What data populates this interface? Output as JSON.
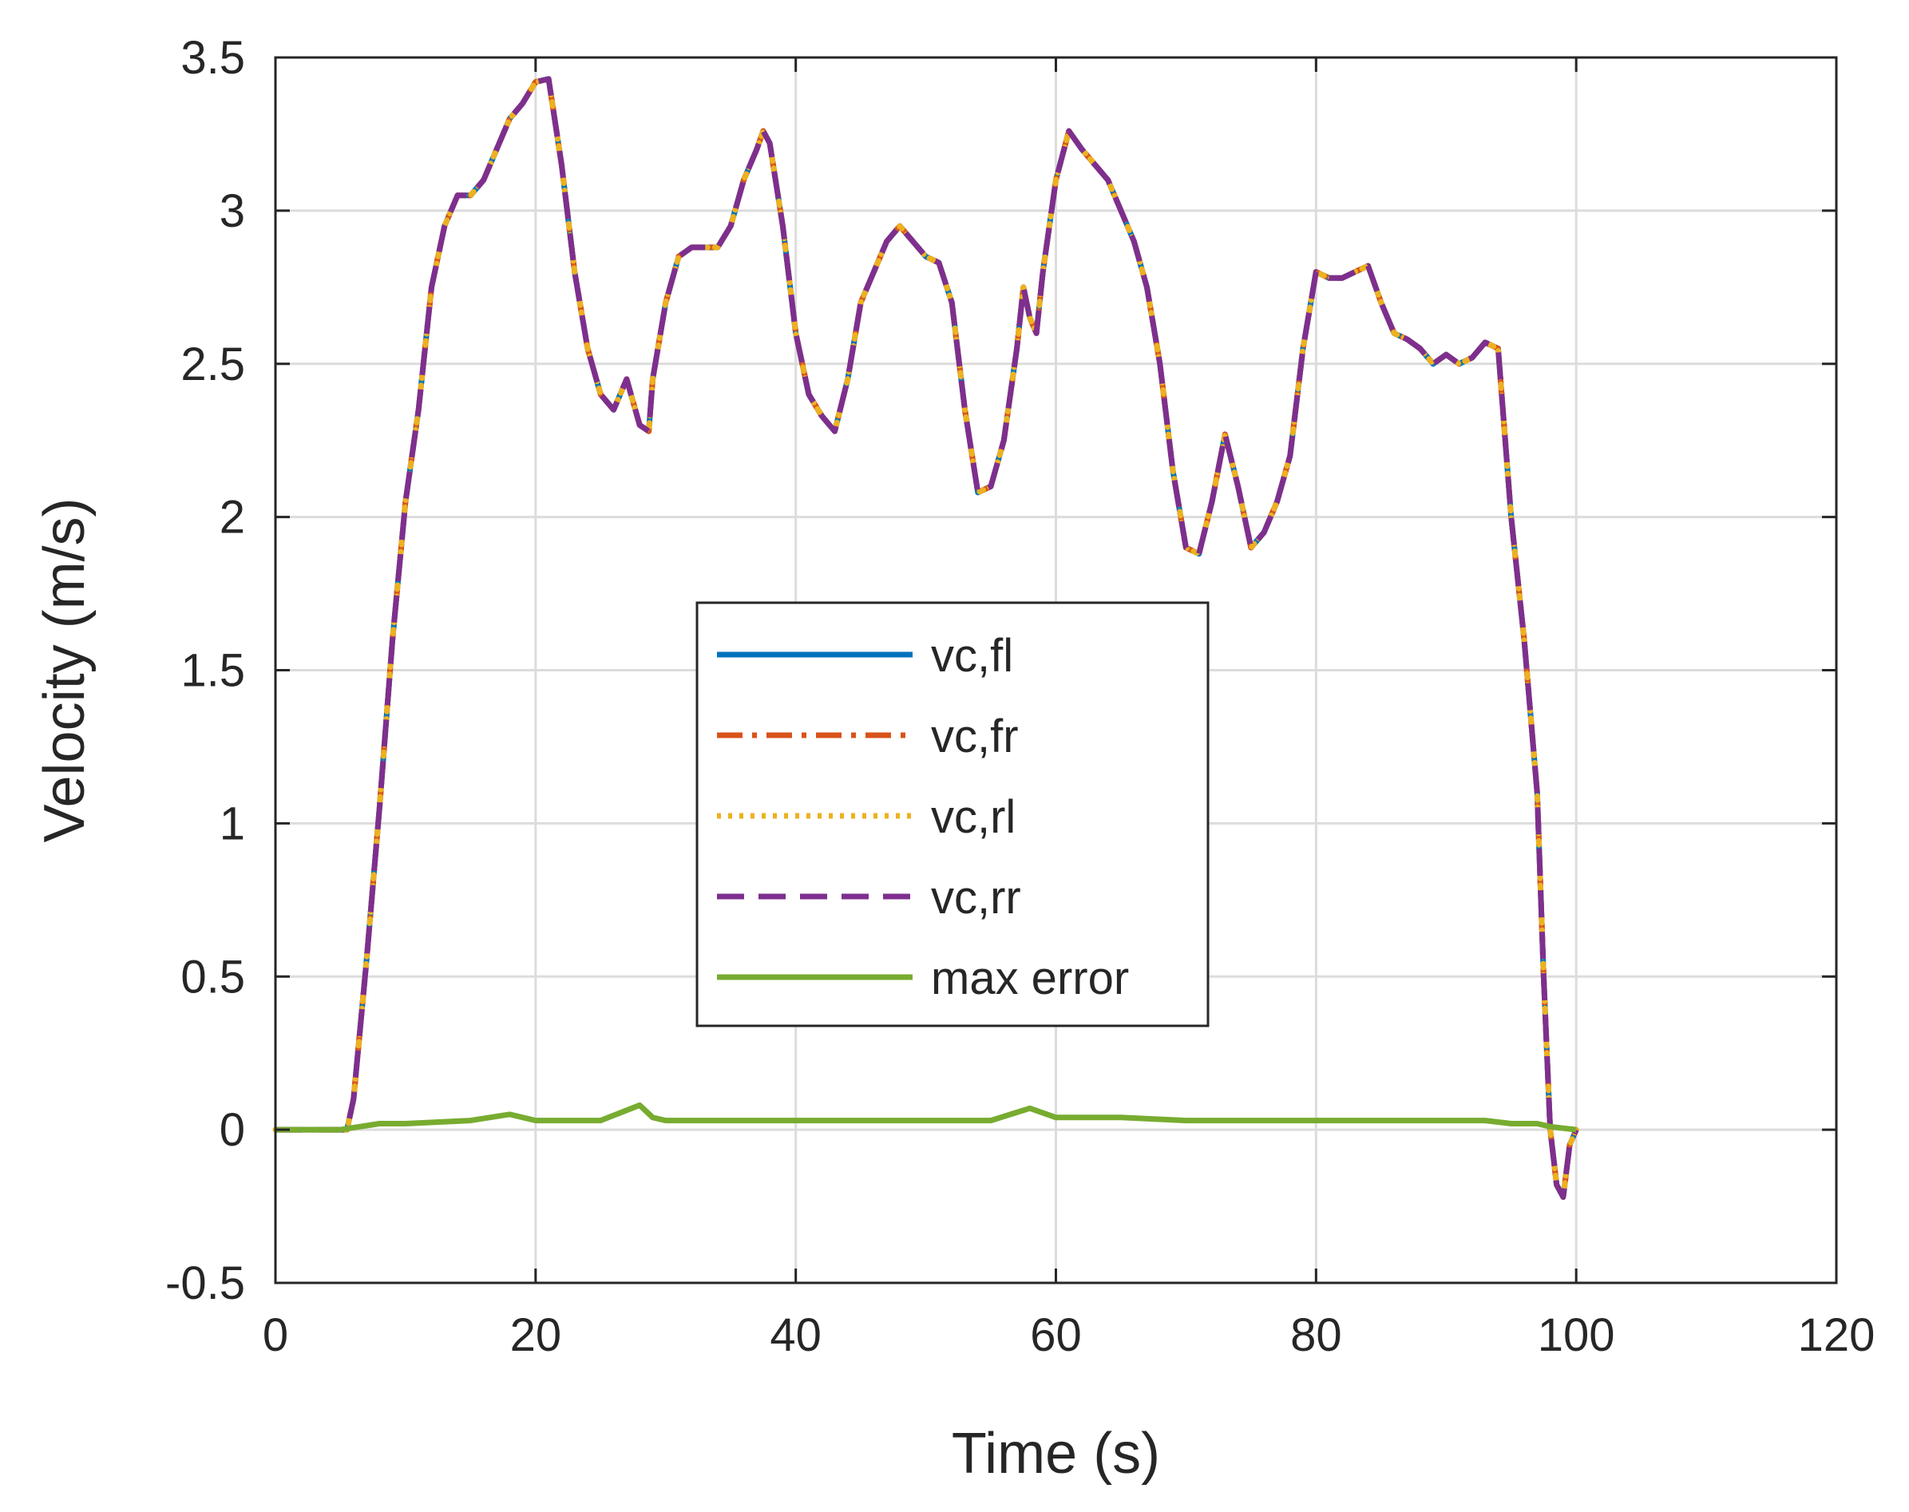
{
  "chart_data": {
    "type": "line",
    "title": "",
    "xlabel": "Time (s)",
    "ylabel": "Velocity (m/s)",
    "xlim": [
      0,
      120
    ],
    "ylim": [
      -0.5,
      3.5
    ],
    "xticks": [
      0,
      20,
      40,
      60,
      80,
      100,
      120
    ],
    "yticks": [
      -0.5,
      0,
      0.5,
      1,
      1.5,
      2,
      2.5,
      3,
      3.5
    ],
    "xtick_labels": [
      "0",
      "20",
      "40",
      "60",
      "80",
      "100",
      "120"
    ],
    "ytick_labels": [
      "-0.5",
      "0",
      "0.5",
      "1",
      "1.5",
      "2",
      "2.5",
      "3",
      "3.5"
    ],
    "grid": true,
    "legend_position": "center",
    "base_profile": {
      "x": [
        0,
        5.5,
        6,
        7,
        8,
        9,
        10,
        11,
        12,
        13,
        14,
        15,
        16,
        17,
        18,
        19,
        20,
        21,
        22,
        23,
        24,
        25,
        26,
        27,
        28,
        28.7,
        29,
        30,
        31,
        32,
        33,
        34,
        35,
        36,
        37,
        37.5,
        38,
        39,
        40,
        41,
        42,
        43,
        44,
        45,
        46,
        47,
        48,
        49,
        50,
        51,
        52,
        53,
        54,
        55,
        56,
        57,
        57.5,
        58,
        58.5,
        59,
        60,
        61,
        62,
        63,
        64,
        65,
        66,
        67,
        68,
        69,
        70,
        71,
        72,
        73,
        74,
        75,
        76,
        77,
        78,
        79,
        80,
        81,
        82,
        83,
        84,
        85,
        86,
        87,
        88,
        89,
        90,
        91,
        92,
        93,
        94,
        95,
        96,
        97,
        97.5,
        98,
        98.5,
        99,
        99.5,
        100
      ],
      "y": [
        0,
        0,
        0.1,
        0.55,
        1.05,
        1.6,
        2.05,
        2.35,
        2.75,
        2.95,
        3.05,
        3.05,
        3.1,
        3.2,
        3.3,
        3.35,
        3.42,
        3.43,
        3.15,
        2.8,
        2.55,
        2.4,
        2.35,
        2.45,
        2.3,
        2.28,
        2.45,
        2.7,
        2.85,
        2.88,
        2.88,
        2.88,
        2.95,
        3.1,
        3.2,
        3.26,
        3.22,
        2.95,
        2.6,
        2.4,
        2.33,
        2.28,
        2.45,
        2.7,
        2.8,
        2.9,
        2.95,
        2.9,
        2.85,
        2.83,
        2.7,
        2.35,
        2.08,
        2.1,
        2.25,
        2.55,
        2.75,
        2.65,
        2.6,
        2.8,
        3.1,
        3.26,
        3.2,
        3.15,
        3.1,
        3.0,
        2.9,
        2.75,
        2.5,
        2.15,
        1.9,
        1.88,
        2.05,
        2.27,
        2.1,
        1.9,
        1.95,
        2.05,
        2.2,
        2.55,
        2.8,
        2.78,
        2.78,
        2.8,
        2.82,
        2.7,
        2.6,
        2.58,
        2.55,
        2.5,
        2.53,
        2.5,
        2.52,
        2.57,
        2.55,
        2.0,
        1.6,
        1.1,
        0.5,
        0.0,
        -0.18,
        -0.22,
        -0.05,
        0
      ]
    },
    "series": [
      {
        "name": "vc,fl",
        "color": "#0072BD",
        "dash": "solid"
      },
      {
        "name": "vc,fr",
        "color": "#D95319",
        "dash": "dashdot"
      },
      {
        "name": "vc,rl",
        "color": "#EDB120",
        "dash": "dotted"
      },
      {
        "name": "vc,rr",
        "color": "#7E2F8E",
        "dash": "dashed"
      },
      {
        "name": "max error",
        "color": "#77AC30",
        "dash": "solid",
        "x": [
          0,
          5,
          8,
          10,
          15,
          18,
          20,
          25,
          28,
          29,
          30,
          35,
          40,
          45,
          50,
          55,
          58,
          60,
          65,
          70,
          75,
          80,
          85,
          90,
          93,
          95,
          97,
          98,
          100
        ],
        "y": [
          0,
          0,
          0.02,
          0.02,
          0.03,
          0.05,
          0.03,
          0.03,
          0.08,
          0.04,
          0.03,
          0.03,
          0.03,
          0.03,
          0.03,
          0.03,
          0.07,
          0.04,
          0.04,
          0.03,
          0.03,
          0.03,
          0.03,
          0.03,
          0.03,
          0.02,
          0.02,
          0.01,
          0.0
        ]
      }
    ]
  }
}
